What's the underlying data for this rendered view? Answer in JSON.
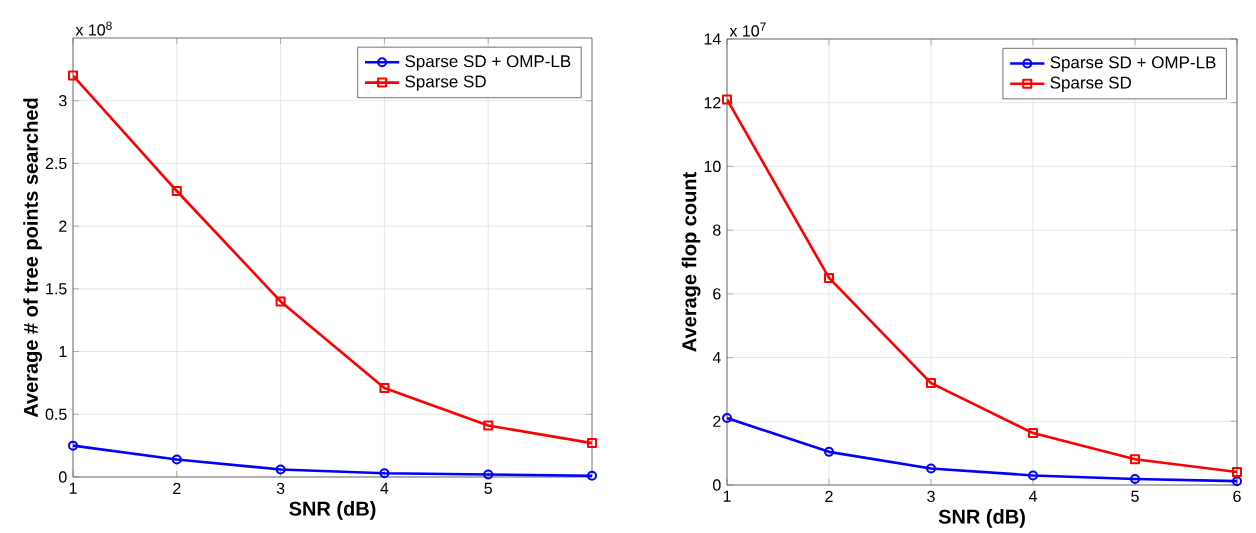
{
  "chart_data": [
    {
      "type": "line",
      "xlabel": "SNR (dB)",
      "ylabel": "Average # of tree points searched",
      "annotations": [
        "x 10$^{8}$"
      ],
      "x": [
        1,
        2,
        3,
        4,
        5,
        6
      ],
      "series": [
        {
          "name": "Sparse SD + OMP-LB",
          "color": "#0000ff",
          "marker": "circle",
          "values": [
            0.25,
            0.14,
            0.06,
            0.03,
            0.02,
            0.01
          ]
        },
        {
          "name": "Sparse SD",
          "color": "#ff0000",
          "marker": "square",
          "values": [
            3.2,
            2.28,
            1.4,
            0.71,
            0.41,
            0.27
          ]
        }
      ],
      "xlim": [
        1,
        6
      ],
      "ylim": [
        0,
        3.5
      ],
      "xticks": [
        1,
        2,
        3,
        4,
        5
      ],
      "yticks": [
        0,
        0.5,
        1,
        1.5,
        2,
        2.5,
        3
      ],
      "grid": true,
      "legend": "top right",
      "line_style": "solid"
    },
    {
      "type": "line",
      "xlabel": "SNR (dB)",
      "ylabel": "Average flop count",
      "annotations": [
        "x 10$^{7}$"
      ],
      "x": [
        1,
        2,
        3,
        4,
        5,
        6
      ],
      "series": [
        {
          "name": "Sparse SD + OMP-LB",
          "color": "#0000ff",
          "marker": "circle",
          "values": [
            2.1,
            1.04,
            0.52,
            0.3,
            0.19,
            0.12
          ]
        },
        {
          "name": "Sparse SD",
          "color": "#ff0000",
          "marker": "square",
          "values": [
            12.1,
            6.5,
            3.2,
            1.63,
            0.81,
            0.41
          ]
        }
      ],
      "xlim": [
        1,
        6
      ],
      "ylim": [
        0,
        14
      ],
      "xticks": [
        1,
        2,
        3,
        4,
        5,
        6
      ],
      "yticks": [
        0,
        2,
        4,
        6,
        8,
        10,
        12,
        14
      ],
      "grid": true,
      "legend": "top right",
      "line_style": "solid"
    }
  ]
}
